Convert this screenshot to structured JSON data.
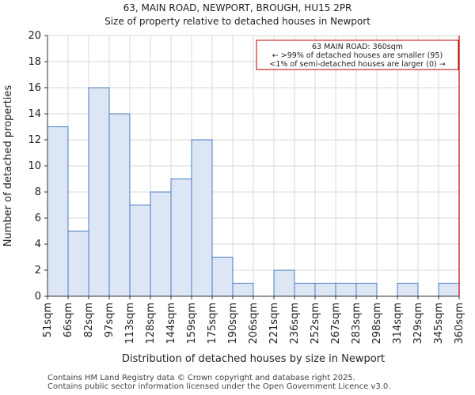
{
  "header": {
    "title_line1": "63, MAIN ROAD, NEWPORT, BROUGH, HU15 2PR",
    "title_line2": "Size of property relative to detached houses in Newport"
  },
  "footer": {
    "line1": "Contains HM Land Registry data © Crown copyright and database right 2025.",
    "line2": "Contains public sector information licensed under the Open Government Licence v3.0."
  },
  "colors": {
    "bar_fill": "#dce6f4",
    "bar_stroke": "#4a7cc0",
    "marker": "#c00000",
    "grid": "#d9d9d9",
    "axis": "#333333"
  },
  "chart_data": {
    "type": "bar",
    "title": "Size of property relative to detached houses in Newport",
    "xlabel": "Distribution of detached houses by size in Newport",
    "ylabel": "Number of detached properties",
    "ylim": [
      0,
      20
    ],
    "yticks": [
      0,
      2,
      4,
      6,
      8,
      10,
      12,
      14,
      16,
      18,
      20
    ],
    "grid": true,
    "bin_edges": [
      "51sqm",
      "66sqm",
      "82sqm",
      "97sqm",
      "113sqm",
      "128sqm",
      "144sqm",
      "159sqm",
      "175sqm",
      "190sqm",
      "206sqm",
      "221sqm",
      "236sqm",
      "252sqm",
      "267sqm",
      "283sqm",
      "298sqm",
      "314sqm",
      "329sqm",
      "345sqm",
      "360sqm"
    ],
    "values": [
      13,
      5,
      16,
      14,
      7,
      8,
      9,
      12,
      3,
      1,
      0,
      2,
      1,
      1,
      1,
      1,
      0,
      1,
      0,
      1
    ],
    "marker": {
      "bin_index": 20,
      "value_label": "360sqm"
    },
    "annotation": {
      "line1": "63 MAIN ROAD: 360sqm",
      "line2": "← >99% of detached houses are smaller (95)",
      "line3": "<1% of semi-detached houses are larger (0) →"
    }
  }
}
